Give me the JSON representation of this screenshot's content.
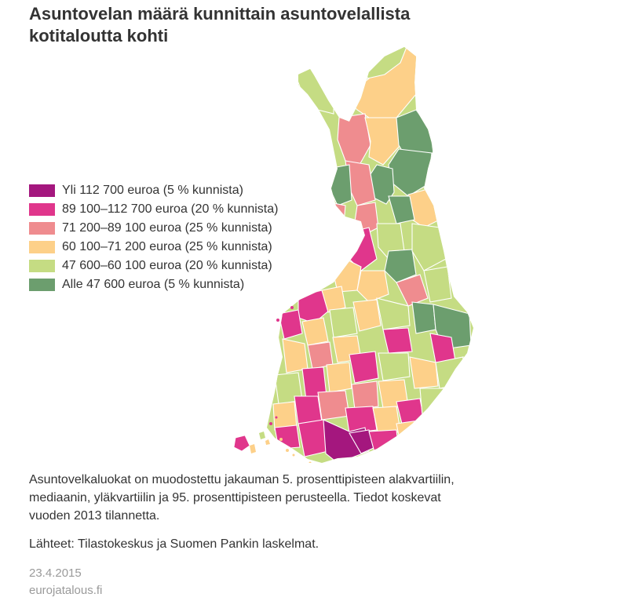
{
  "title": "Asuntovelan määrä kunnittain asuntovelallista kotitaloutta kohti",
  "legend": [
    {
      "label": "Yli 112 700 euroa (5 % kunnista)",
      "color": "#a4177e"
    },
    {
      "label": "89 100–112 700 euroa (20 % kunnista)",
      "color": "#e0368c"
    },
    {
      "label": "71 200–89 100 euroa (25 % kunnista)",
      "color": "#ef8c8f"
    },
    {
      "label": "60 100–71 200 euroa (25 % kunnista)",
      "color": "#fdd089"
    },
    {
      "label": "47 600–60 100 euroa (20 % kunnista)",
      "color": "#c5dc83"
    },
    {
      "label": "Alle 47 600 euroa (5 % kunnista)",
      "color": "#6c9e6e"
    }
  ],
  "notes": {
    "method": "Asuntovelkaluokat on muodostettu jakauman 5. prosenttipisteen alakvartiilin, mediaanin, yläkvartiilin ja 95. prosenttipisteen perusteella. Tiedot koskevat vuoden 2013 tilannetta.",
    "sources": "Lähteet: Tilastokeskus ja Suomen Pankin laskelmat."
  },
  "footer": {
    "date": "23.4.2015",
    "site": "eurojatalous.fi"
  }
}
